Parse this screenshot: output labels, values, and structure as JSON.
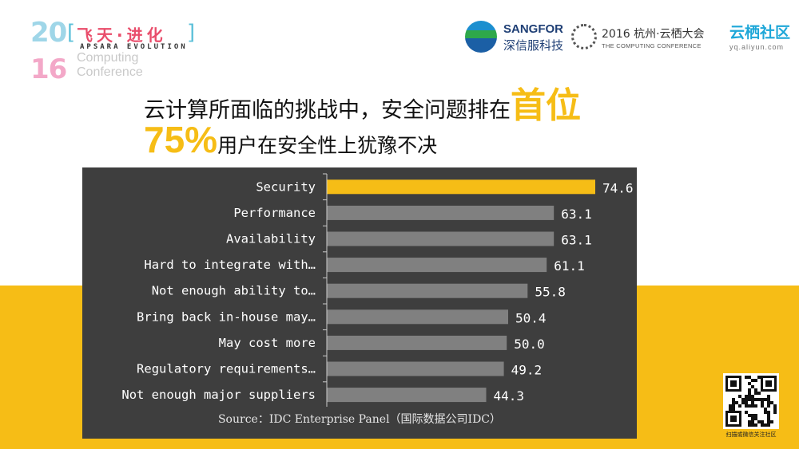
{
  "event_logo": {
    "year_top": "20",
    "year_bottom": "16",
    "cn_title": "飞天·进化",
    "en_subtitle": "APSARA EVOLUTION",
    "bg_text_line1": "Computing",
    "bg_text_line2": "Conference"
  },
  "partners": {
    "sangfor_name": "SANGFOR",
    "sangfor_cn": "深信服科技",
    "conference_title": "2016 杭州·云栖大会",
    "conference_sub": "THE COMPUTING CONFERENCE",
    "yunqi_cn": "云栖社区",
    "yunqi_url": "yq.aliyun.com"
  },
  "headline": {
    "line1_text": "云计算所面临的挑战中，安全问题排在",
    "line1_highlight": "首位",
    "line2_pct": "75%",
    "line2_text": "用户在安全性上犹豫不决"
  },
  "chart_data": {
    "type": "bar",
    "orientation": "horizontal",
    "categories": [
      "Security",
      "Performance",
      "Availability",
      "Hard to integrate with…",
      "Not enough ability to…",
      "Bring back in-house may…",
      "May cost more",
      "Regulatory requirements…",
      "Not enough major suppliers"
    ],
    "values": [
      74.6,
      63.1,
      63.1,
      61.1,
      55.8,
      50.4,
      50.0,
      49.2,
      44.3
    ],
    "value_labels": [
      "74.6",
      "63.1",
      "63.1",
      "61.1",
      "55.8",
      "50.4",
      "50.0",
      "49.2",
      "44.3"
    ],
    "highlight_index": 0,
    "colors": {
      "highlight": "#f6bd16",
      "bar": "#808080",
      "text": "#ffffff"
    },
    "grid": false,
    "source": "Source：IDC Enterprise Panel（国际数据公司IDC）"
  },
  "qr_caption": "扫描或微信关注社区"
}
